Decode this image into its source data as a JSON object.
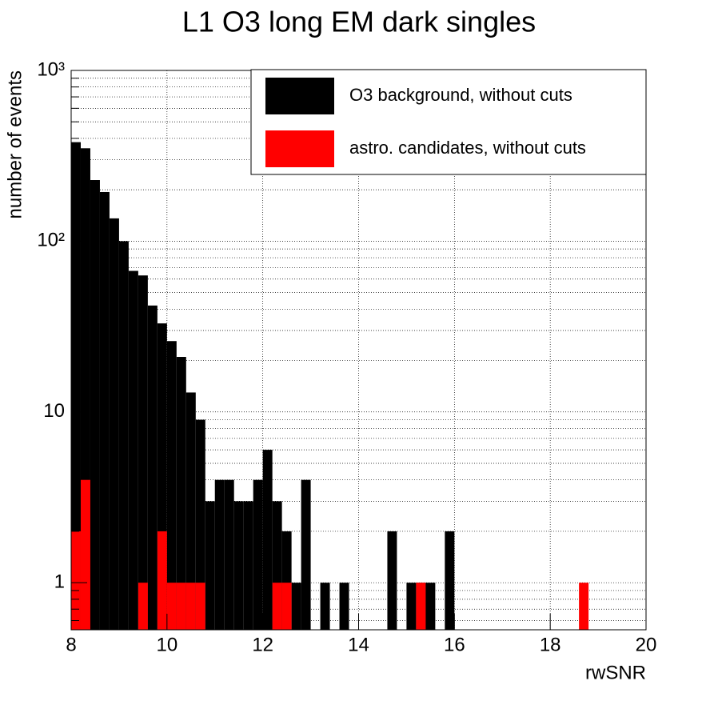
{
  "chart_data": {
    "type": "histogram",
    "title": "L1 O3 long EM dark singles",
    "x_label": "rwSNR",
    "y_label": "number of events",
    "bins": [
      8.0,
      8.2,
      8.4,
      8.6,
      8.8,
      9.0,
      9.2,
      9.4,
      9.6,
      9.8,
      10.0,
      10.2,
      10.4,
      10.6,
      10.8,
      11.0,
      11.2,
      11.4,
      11.6,
      11.8,
      12.0,
      12.2,
      12.4,
      12.6,
      12.8,
      13.0,
      13.2,
      13.4,
      13.6,
      13.8,
      14.0,
      14.2,
      14.4,
      14.6,
      14.8,
      15.0,
      15.2,
      15.4,
      15.6,
      15.8,
      16.0,
      16.2,
      16.4,
      16.6,
      16.8,
      17.0,
      17.2,
      17.4,
      17.6,
      17.8,
      18.0,
      18.2,
      18.4,
      18.6,
      18.8,
      19.0,
      19.2,
      19.4,
      19.6,
      19.8,
      20.0
    ],
    "series": [
      {
        "name": "O3 background, without cuts",
        "color": "#000000",
        "values": [
          380,
          350,
          228,
          194,
          136,
          100,
          67,
          63,
          42,
          33,
          26,
          21,
          13,
          9,
          3,
          4,
          4,
          3,
          3,
          4,
          6,
          3,
          2,
          1,
          4,
          0,
          1,
          0,
          1,
          0,
          0,
          0,
          0,
          2,
          0,
          1,
          1,
          1,
          0,
          2,
          0,
          0,
          0,
          0,
          0,
          0,
          0,
          0,
          0,
          0,
          0,
          0,
          0,
          0,
          0,
          0,
          0,
          0,
          0,
          0
        ]
      },
      {
        "name": "astro. candidates, without cuts",
        "color": "#ff0000",
        "values": [
          2,
          4,
          0,
          0,
          0,
          0,
          0,
          1,
          0,
          2,
          1,
          1,
          1,
          1,
          0,
          0,
          0,
          0,
          0,
          0,
          0,
          1,
          1,
          0,
          0,
          0,
          0,
          0,
          0,
          0,
          0,
          0,
          0,
          0,
          0,
          0,
          1,
          0,
          0,
          0,
          0,
          0,
          0,
          0,
          0,
          0,
          0,
          0,
          0,
          0,
          0,
          0,
          0,
          1,
          0,
          0,
          0,
          0,
          0,
          0
        ]
      }
    ],
    "xlim": [
      8,
      20
    ],
    "xticks": [
      8,
      10,
      12,
      14,
      16,
      18,
      20
    ],
    "ylim": [
      0.53,
      1000
    ],
    "yscale": "log",
    "yticks": [
      1,
      10,
      {
        "value": 100,
        "label": "10²"
      },
      {
        "value": 1000,
        "label": "10³"
      }
    ],
    "yminorticks": [
      0.6,
      0.7,
      0.8,
      0.9,
      2,
      3,
      4,
      5,
      6,
      7,
      8,
      9,
      20,
      30,
      40,
      50,
      60,
      70,
      80,
      90,
      200,
      300,
      400,
      500,
      600,
      700,
      800,
      900
    ],
    "grid": true,
    "legend": "top-right"
  }
}
